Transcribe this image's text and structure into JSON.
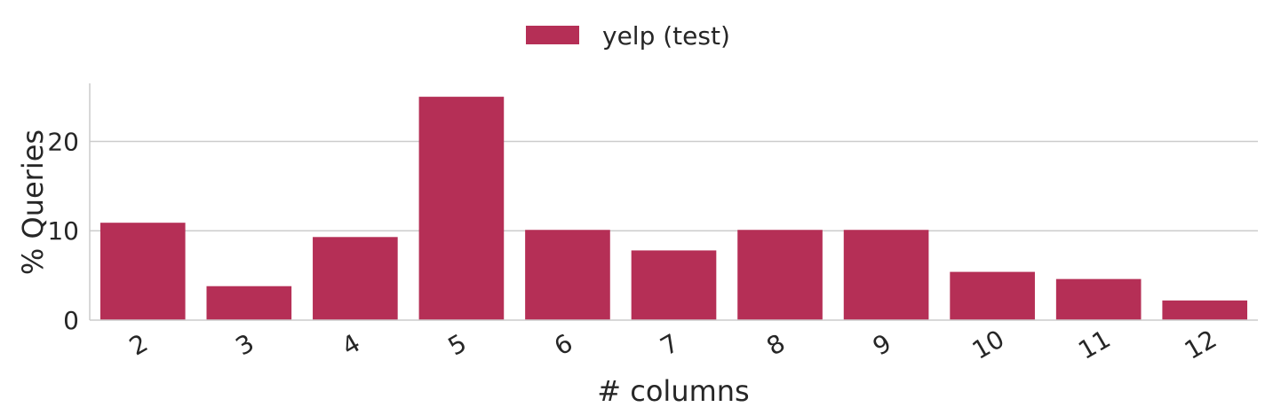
{
  "chart_data": {
    "type": "bar",
    "categories": [
      "2",
      "3",
      "4",
      "5",
      "6",
      "7",
      "8",
      "9",
      "10",
      "11",
      "12"
    ],
    "series": [
      {
        "name": "yelp (test)",
        "values": [
          10.9,
          3.8,
          9.3,
          25.0,
          10.1,
          7.8,
          10.1,
          10.1,
          5.4,
          4.6,
          2.2
        ],
        "color": "#b52f56"
      }
    ],
    "xlabel": "# columns",
    "ylabel": "% Queries",
    "ylim": [
      0,
      26.5
    ],
    "yticks": [
      0,
      10,
      20
    ],
    "grid": "horizontal",
    "legend_position": "top-center",
    "x_tick_rotation": -30
  }
}
